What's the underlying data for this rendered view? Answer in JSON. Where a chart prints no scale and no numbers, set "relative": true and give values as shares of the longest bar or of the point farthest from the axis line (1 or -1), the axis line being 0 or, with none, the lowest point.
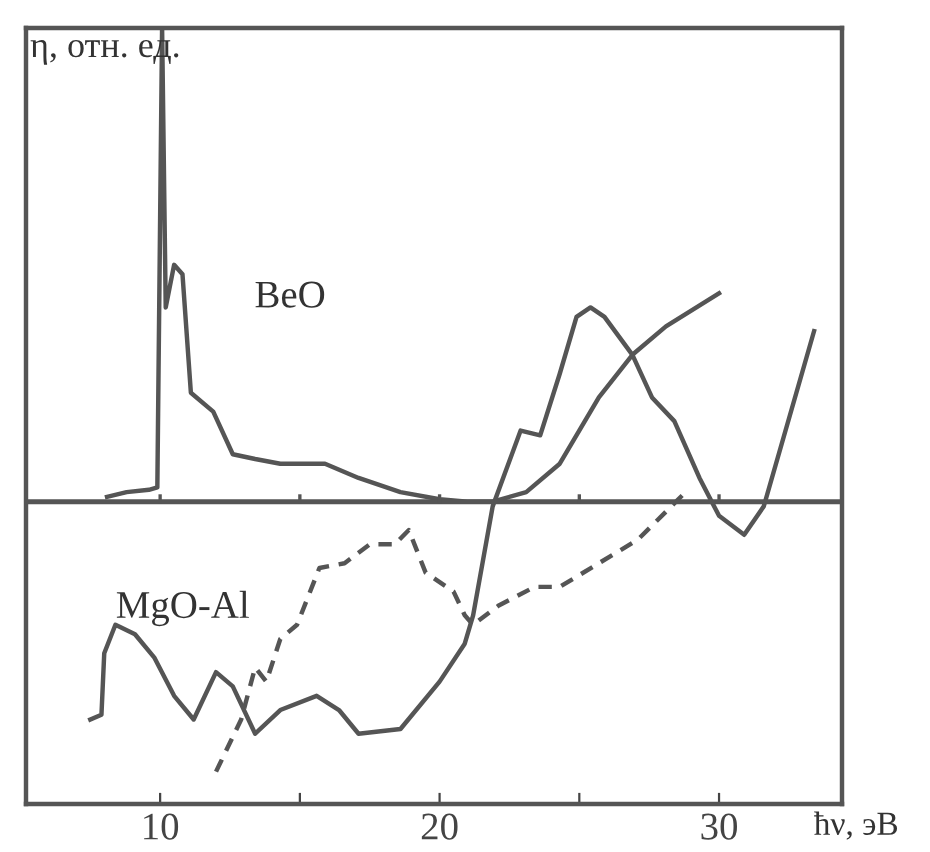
{
  "chart_data": {
    "type": "line",
    "relative": true,
    "xlabel": "ħν, эВ",
    "ylabel": "η, отн. ед.",
    "xlim": [
      5.2,
      34.4
    ],
    "xticks": [
      10,
      {
        "value": 15,
        "label": null
      },
      20,
      {
        "value": 25,
        "label": null
      },
      30
    ],
    "grid": false,
    "legend": false,
    "marker": "none",
    "series": [
      {
        "name": "BeO",
        "color": "#555555",
        "line_style": "solid",
        "x": [
          8.1,
          8.8,
          9.6,
          9.9,
          10.07,
          10.2,
          10.5,
          10.8,
          11.1,
          11.9,
          12.6,
          13.4,
          14.3,
          15.9,
          17.1,
          18.6,
          20,
          21,
          21.9,
          23.1,
          24.3,
          25.7,
          26.9,
          28.1,
          30
        ],
        "values": [
          0.01,
          0.02,
          0.025,
          0.03,
          1.0,
          0.41,
          0.5,
          0.48,
          0.23,
          0.19,
          0.1,
          0.09,
          0.08,
          0.08,
          0.05,
          0.02,
          0.005,
          0,
          0,
          0.02,
          0.08,
          0.22,
          0.31,
          0.37,
          0.44
        ]
      },
      {
        "name": "MgO-Al",
        "color": "#555555",
        "line_style": "solid",
        "x": [
          7.5,
          7.9,
          8.0,
          8.4,
          9.1,
          9.8,
          10.5,
          11.2,
          12.0,
          12.6,
          13.4,
          14.3,
          15.6,
          16.4,
          17.1,
          18.6,
          20.0,
          20.9,
          21.2,
          21.9,
          22.9,
          23.6,
          24.3,
          24.9,
          25.4,
          25.9,
          26.9,
          27.6,
          28.4,
          29.3,
          30,
          30.9,
          31.6,
          33.4
        ],
        "values": [
          -0.46,
          -0.45,
          -0.32,
          -0.26,
          -0.28,
          -0.33,
          -0.41,
          -0.46,
          -0.36,
          -0.39,
          -0.49,
          -0.44,
          -0.41,
          -0.44,
          -0.49,
          -0.48,
          -0.38,
          -0.3,
          -0.24,
          -0.01,
          0.15,
          0.14,
          0.27,
          0.39,
          0.41,
          0.39,
          0.31,
          0.22,
          0.17,
          0.05,
          -0.03,
          -0.07,
          -0.01,
          0.36
        ]
      },
      {
        "color": "#555555",
        "line_style": "dashed",
        "x": [
          12,
          12.9,
          13.4,
          13.8,
          14.3,
          14.9,
          15.7,
          16.6,
          17.5,
          18.4,
          18.9,
          19.5,
          20.5,
          20.9,
          21.2,
          22.1,
          23.4,
          24.3,
          25.7,
          27.1,
          28.8
        ],
        "values": [
          -0.57,
          -0.46,
          -0.35,
          -0.38,
          -0.29,
          -0.26,
          -0.14,
          -0.13,
          -0.09,
          -0.09,
          -0.06,
          -0.15,
          -0.19,
          -0.24,
          -0.26,
          -0.22,
          -0.18,
          -0.18,
          -0.13,
          -0.08,
          0.02
        ]
      }
    ]
  }
}
